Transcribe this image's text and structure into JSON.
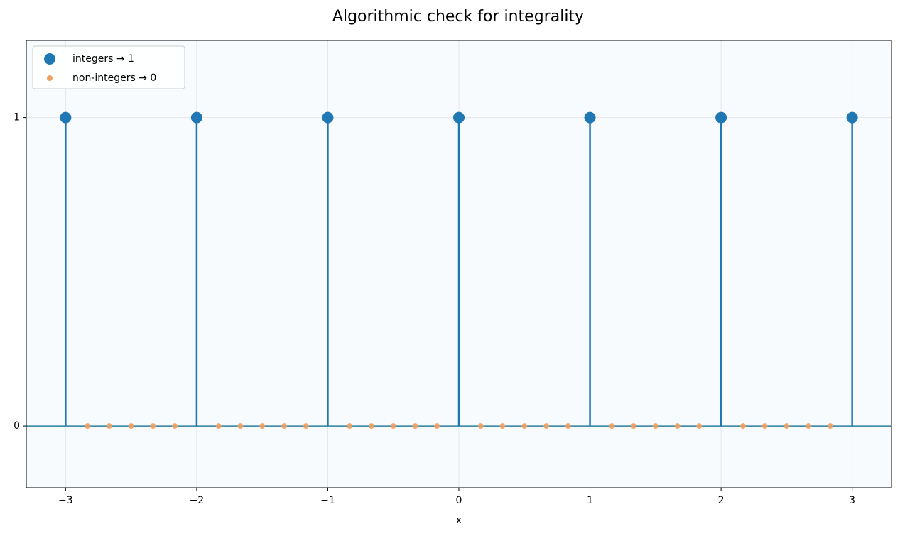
{
  "chart_data": {
    "type": "stem",
    "title": "Algorithmic check for integrality",
    "xlabel": "x",
    "xlim": [
      -3.3,
      3.3
    ],
    "ylim": [
      -0.2,
      1.25
    ],
    "xticks": [
      {
        "value": -3,
        "label": "−3"
      },
      {
        "value": -2,
        "label": "−2"
      },
      {
        "value": -1,
        "label": "−1"
      },
      0,
      1,
      2,
      3
    ],
    "yticks": [
      0,
      1
    ],
    "grid": true,
    "legend": "upper left",
    "baseline": 0,
    "series": [
      {
        "name": "integers → 1",
        "color": "#1f77b4",
        "stem": true,
        "marker_size": 8,
        "x": [
          -3,
          -2,
          -1,
          0,
          1,
          2,
          3
        ],
        "values": [
          1,
          1,
          1,
          1,
          1,
          1,
          1
        ]
      },
      {
        "name": "non-integers → 0",
        "color": "#f0a060",
        "stem": false,
        "marker_size": 4,
        "x": [
          -2.833,
          -2.667,
          -2.5,
          -2.333,
          -2.167,
          -1.833,
          -1.667,
          -1.5,
          -1.333,
          -1.167,
          -0.833,
          -0.667,
          -0.5,
          -0.333,
          -0.167,
          0.167,
          0.333,
          0.5,
          0.667,
          0.833,
          1.167,
          1.333,
          1.5,
          1.667,
          1.833,
          2.167,
          2.333,
          2.5,
          2.667,
          2.833
        ],
        "values": [
          0,
          0,
          0,
          0,
          0,
          0,
          0,
          0,
          0,
          0,
          0,
          0,
          0,
          0,
          0,
          0,
          0,
          0,
          0,
          0,
          0,
          0,
          0,
          0,
          0,
          0,
          0,
          0,
          0,
          0
        ]
      }
    ]
  }
}
